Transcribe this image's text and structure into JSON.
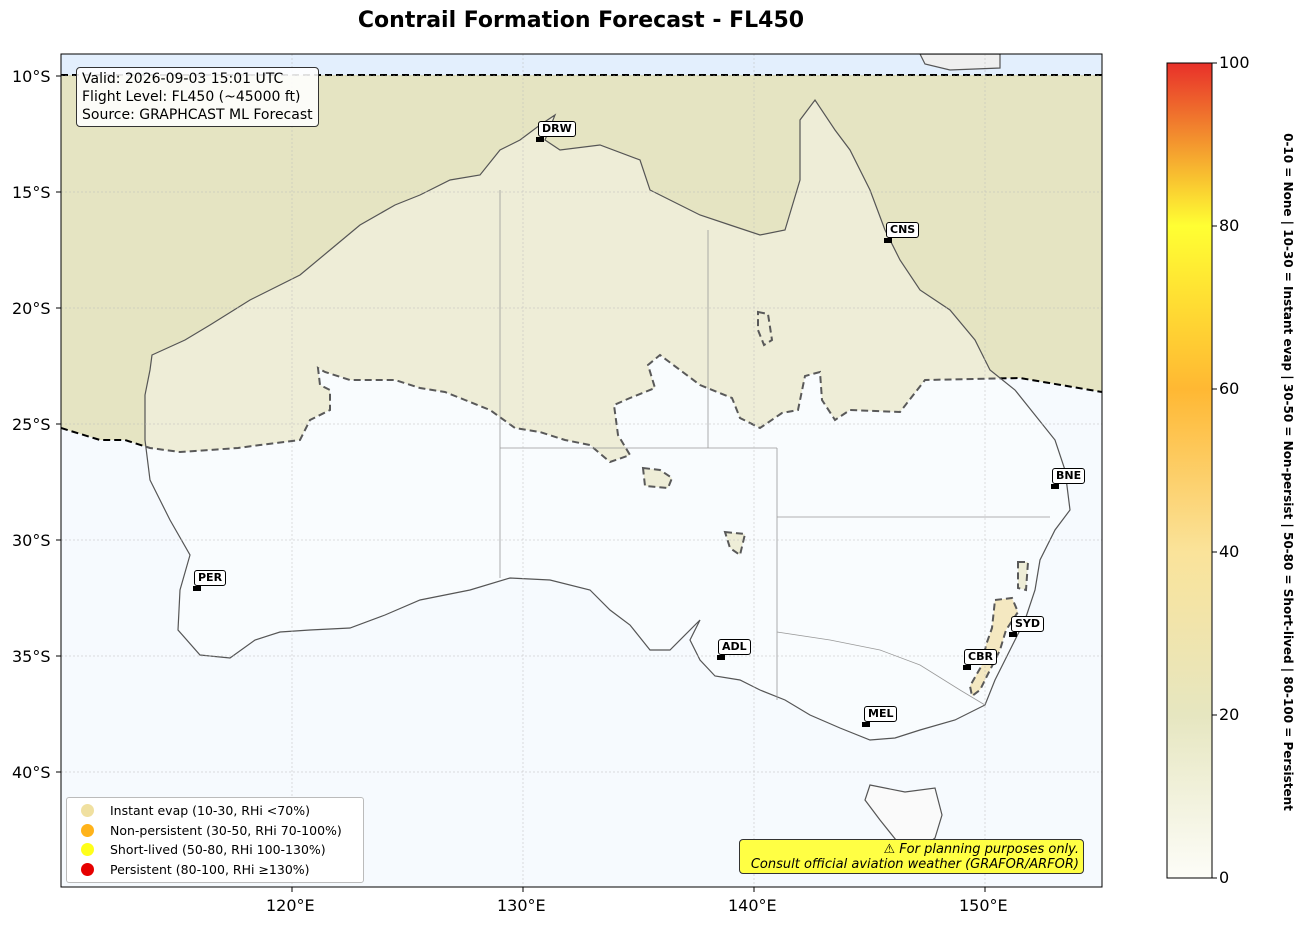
{
  "title": "Contrail Formation Forecast - FL450",
  "info": {
    "valid": "Valid: 2026-09-03 15:01 UTC",
    "level": "Flight Level: FL450 (~45000 ft)",
    "source": "Source: GRAPHCAST ML Forecast"
  },
  "axes": {
    "lat_labels": [
      "10°S",
      "15°S",
      "20°S",
      "25°S",
      "30°S",
      "35°S",
      "40°S"
    ],
    "lon_labels": [
      "120°E",
      "130°E",
      "140°E",
      "150°E"
    ]
  },
  "cities": [
    {
      "code": "DRW"
    },
    {
      "code": "CNS"
    },
    {
      "code": "BNE"
    },
    {
      "code": "PER"
    },
    {
      "code": "SYD"
    },
    {
      "code": "ADL"
    },
    {
      "code": "CBR"
    },
    {
      "code": "MEL"
    }
  ],
  "legend": [
    {
      "label": "Instant evap (10-30, RHi <70%)",
      "color": "#f0e0a0"
    },
    {
      "label": "Non-persistent (30-50, RHi 70-100%)",
      "color": "#ffb31a"
    },
    {
      "label": "Short-lived (50-80, RHi 100-130%)",
      "color": "#ffff1a"
    },
    {
      "label": "Persistent (80-100, RHi ≥130%)",
      "color": "#e60000"
    }
  ],
  "warning": {
    "line1": "⚠ For planning purposes only.",
    "line2": "Consult official aviation weather (GRAFOR/ARFOR)"
  },
  "colorbar": {
    "ticks": [
      "0",
      "20",
      "40",
      "60",
      "80",
      "100"
    ],
    "label": "0-10 = None  |  10-30 = Instant evap  |  30-50 = Non-persist  |  50-80 = Short-lived  |  80-100 = Persistent",
    "colors": [
      "#fdfdf8",
      "#e6e6c0",
      "#fae39a",
      "#ffb833",
      "#ffff33",
      "#e8302a"
    ]
  }
}
